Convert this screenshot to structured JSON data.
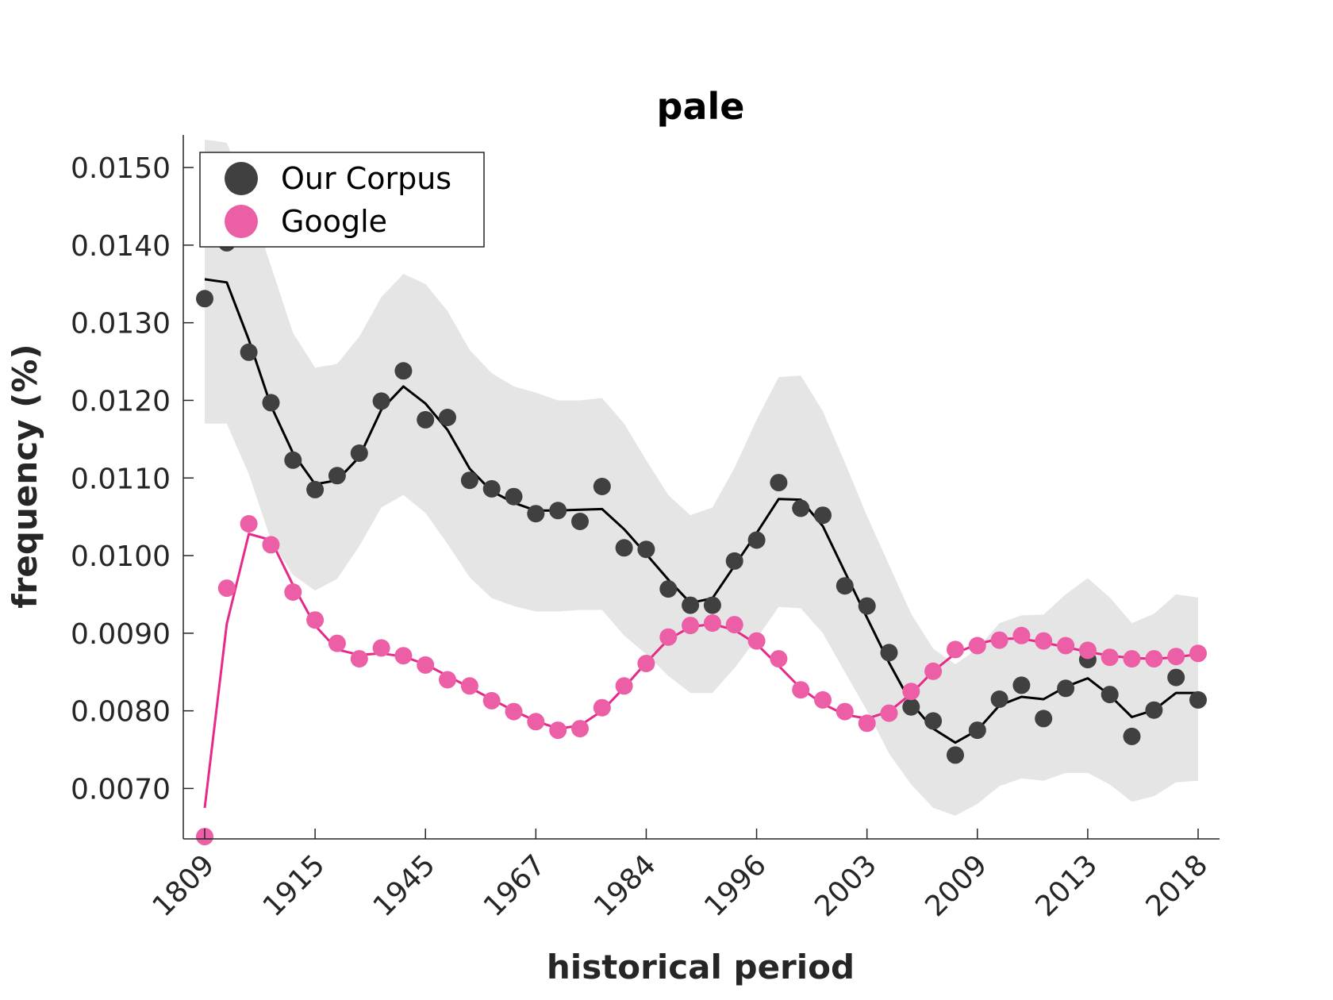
{
  "chart_data": {
    "type": "scatter",
    "title": "pale",
    "xlabel": "historical period",
    "ylabel": "frequency (%)",
    "ylim": [
      0.00635,
      0.01542
    ],
    "yticks": [
      0.007,
      0.008,
      0.009,
      0.01,
      0.011,
      0.012,
      0.013,
      0.014,
      0.015
    ],
    "ytick_labels": [
      "0.0070",
      "0.0080",
      "0.0090",
      "0.0100",
      "0.0110",
      "0.0120",
      "0.0130",
      "0.0140",
      "0.0150"
    ],
    "x_index_range": [
      1,
      46
    ],
    "xticks": [
      1,
      6,
      11,
      16,
      21,
      26,
      31,
      36,
      41,
      46
    ],
    "xtick_labels": [
      "1809",
      "1915",
      "1945",
      "1967",
      "1984",
      "1996",
      "2003",
      "2009",
      "2013",
      "2018"
    ],
    "grid": false,
    "legend_position": "top-left",
    "series": [
      {
        "name": "Our Corpus",
        "color": "#000000",
        "marker_color": "#404040",
        "points": [
          0.01331,
          0.01403,
          0.01262,
          0.01197,
          0.01123,
          0.01085,
          0.01103,
          0.01132,
          0.01199,
          0.01238,
          0.01175,
          0.01178,
          0.01097,
          0.01086,
          0.01076,
          0.01054,
          0.01058,
          0.01044,
          0.01089,
          0.0101,
          0.01008,
          0.00957,
          0.00936,
          0.00936,
          0.00993,
          0.0102,
          0.01094,
          0.01061,
          0.01052,
          0.00961,
          0.00935,
          0.00875,
          0.00805,
          0.00787,
          0.00743,
          0.00775,
          0.00815,
          0.00833,
          0.0079,
          0.00829,
          0.00866,
          0.00821,
          0.00767,
          0.00801,
          0.00843,
          0.00814
        ],
        "smoothed": [
          0.01356,
          0.01352,
          0.01278,
          0.01193,
          0.01132,
          0.01092,
          0.01097,
          0.01127,
          0.01188,
          0.01218,
          0.01196,
          0.01162,
          0.01112,
          0.01083,
          0.01068,
          0.01058,
          0.01058,
          0.01059,
          0.0106,
          0.01034,
          0.01002,
          0.00969,
          0.00939,
          0.00945,
          0.00987,
          0.01029,
          0.01073,
          0.01072,
          0.01038,
          0.00979,
          0.0092,
          0.00862,
          0.0081,
          0.00777,
          0.00759,
          0.00775,
          0.00807,
          0.00818,
          0.00815,
          0.00831,
          0.00842,
          0.0082,
          0.00792,
          0.00801,
          0.00823,
          0.00823
        ],
        "band_upper": [
          0.01536,
          0.01532,
          0.01458,
          0.01373,
          0.01287,
          0.01242,
          0.01247,
          0.01282,
          0.01333,
          0.01363,
          0.0135,
          0.01315,
          0.01265,
          0.01235,
          0.01218,
          0.0121,
          0.012,
          0.012,
          0.01203,
          0.0117,
          0.01123,
          0.01078,
          0.01052,
          0.01062,
          0.01113,
          0.01175,
          0.0123,
          0.01232,
          0.01186,
          0.0112,
          0.01051,
          0.00988,
          0.00925,
          0.0088,
          0.0086,
          0.0088,
          0.00913,
          0.00923,
          0.00924,
          0.0095,
          0.00971,
          0.00946,
          0.00913,
          0.00925,
          0.0095,
          0.00946
        ],
        "band_lower": [
          0.0117,
          0.0117,
          0.01105,
          0.0102,
          0.00975,
          0.00955,
          0.0097,
          0.01012,
          0.01062,
          0.01078,
          0.01055,
          0.01015,
          0.00972,
          0.00945,
          0.00935,
          0.00928,
          0.00928,
          0.0093,
          0.0093,
          0.00897,
          0.00873,
          0.00845,
          0.00823,
          0.00823,
          0.00855,
          0.00893,
          0.00934,
          0.00932,
          0.009,
          0.0085,
          0.008,
          0.00745,
          0.00705,
          0.00675,
          0.00665,
          0.0068,
          0.00703,
          0.00713,
          0.0071,
          0.0072,
          0.0072,
          0.00705,
          0.00683,
          0.0069,
          0.00708,
          0.0071
        ]
      },
      {
        "name": "Google",
        "color": "#e7298a",
        "marker_color": "#ec5fa6",
        "points": [
          0.00638,
          0.00958,
          0.01041,
          0.01014,
          0.00953,
          0.00917,
          0.00887,
          0.00867,
          0.00881,
          0.00871,
          0.00859,
          0.0084,
          0.00832,
          0.00813,
          0.00799,
          0.00786,
          0.00775,
          0.00777,
          0.00804,
          0.00832,
          0.00861,
          0.00895,
          0.0091,
          0.00913,
          0.00911,
          0.0089,
          0.00867,
          0.00827,
          0.00814,
          0.00799,
          0.00784,
          0.00797,
          0.00825,
          0.00851,
          0.00879,
          0.00884,
          0.00891,
          0.00897,
          0.0089,
          0.00884,
          0.00878,
          0.00869,
          0.00867,
          0.00867,
          0.0087,
          0.00874
        ],
        "smoothed": [
          0.00675,
          0.00912,
          0.01028,
          0.0102,
          0.00962,
          0.0091,
          0.00879,
          0.00872,
          0.00874,
          0.0087,
          0.0086,
          0.00845,
          0.0083,
          0.00815,
          0.008,
          0.00787,
          0.00777,
          0.00781,
          0.008,
          0.0083,
          0.00862,
          0.00892,
          0.00908,
          0.00912,
          0.00904,
          0.00886,
          0.00858,
          0.00829,
          0.00809,
          0.00795,
          0.0079,
          0.00799,
          0.00822,
          0.00851,
          0.00874,
          0.00886,
          0.00893,
          0.00893,
          0.00888,
          0.00882,
          0.00876,
          0.00871,
          0.00868,
          0.00867,
          0.00869,
          0.00873
        ]
      }
    ]
  }
}
